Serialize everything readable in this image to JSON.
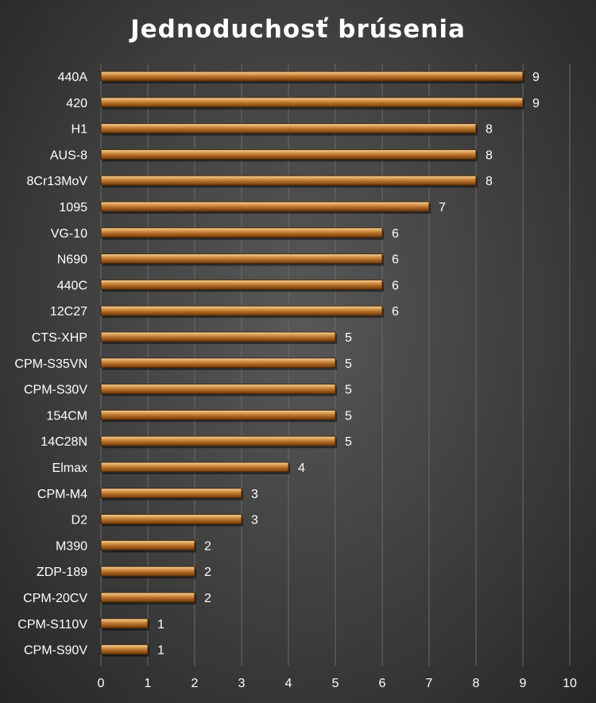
{
  "chart_data": {
    "type": "bar",
    "orientation": "horizontal",
    "title": "Jednoduchosť brúsenia",
    "categories": [
      "440A",
      "420",
      "H1",
      "AUS-8",
      "8Cr13MoV",
      "1095",
      "VG-10",
      "N690",
      "440C",
      "12C27",
      "CTS-XHP",
      "CPM-S35VN",
      "CPM-S30V",
      "154CM",
      "14C28N",
      "Elmax",
      "CPM-M4",
      "D2",
      "M390",
      "ZDP-189",
      "CPM-20CV",
      "CPM-S110V",
      "CPM-S90V"
    ],
    "values": [
      9,
      9,
      8,
      8,
      8,
      7,
      6,
      6,
      6,
      6,
      5,
      5,
      5,
      5,
      5,
      4,
      3,
      3,
      2,
      2,
      2,
      1,
      1
    ],
    "xlim": [
      0,
      10
    ],
    "xticks": [
      0,
      1,
      2,
      3,
      4,
      5,
      6,
      7,
      8,
      9,
      10
    ],
    "xlabel": "",
    "ylabel": "",
    "grid": true,
    "bar_color": "#b8712a"
  }
}
